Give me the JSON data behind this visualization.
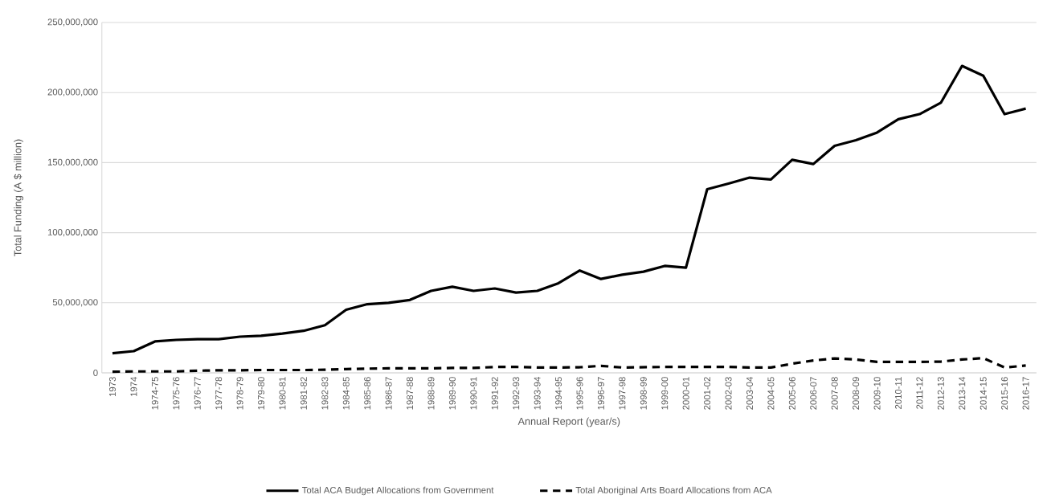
{
  "chart_data": {
    "type": "line",
    "xlabel": "Annual Report (year/s)",
    "ylabel": "Total Funding (A $ million)",
    "categories": [
      "1973",
      "1974",
      "1974-75",
      "1975-76",
      "1976-77",
      "1977-78",
      "1978-79",
      "1979-80",
      "1980-81",
      "1981-82",
      "1982-83",
      "1984-85",
      "1985-86",
      "1986-87",
      "1987-88",
      "1988-89",
      "1989-90",
      "1990-91",
      "1991-92",
      "1992-93",
      "1993-94",
      "1994-95",
      "1995-96",
      "1996-97",
      "1997-98",
      "1998-99",
      "1999-00",
      "2000-01",
      "2001-02",
      "2002-03",
      "2003-04",
      "2004-05",
      "2005-06",
      "2006-07",
      "2007-08",
      "2008-09",
      "2009-10",
      "2010-11",
      "2011-12",
      "2012-13",
      "2013-14",
      "2014-15",
      "2015-16",
      "2016-17"
    ],
    "series": [
      {
        "name": "Total ACA Budget Allocations from Government",
        "color": "#000000",
        "line_style": "solid",
        "values": [
          14000000,
          15500000,
          22400000,
          23500000,
          24000000,
          24000000,
          25800000,
          26400000,
          28000000,
          30000000,
          34000000,
          45000000,
          49000000,
          50000000,
          52000000,
          58500000,
          61400000,
          58500000,
          60200000,
          57300000,
          58500000,
          64000000,
          73000000,
          67000000,
          70000000,
          72200000,
          76300000,
          75000000,
          131000000,
          135000000,
          139300000,
          138000000,
          152000000,
          149000000,
          162000000,
          166000000,
          171500000,
          181000000,
          184600000,
          192700000,
          219000000,
          212000000,
          184600000,
          188600000
        ]
      },
      {
        "name": "Total Aboriginal Arts Board Allocations from ACA",
        "color": "#000000",
        "line_style": "dashed",
        "values": [
          800000,
          1000000,
          1000000,
          1000000,
          1500000,
          1800000,
          1800000,
          2000000,
          2000000,
          2000000,
          2200000,
          2700000,
          3000000,
          3200000,
          3200000,
          3200000,
          3500000,
          3500000,
          4200000,
          4200000,
          3800000,
          3800000,
          4000000,
          5000000,
          3800000,
          4000000,
          4200000,
          4200000,
          4200000,
          4200000,
          3800000,
          3800000,
          6500000,
          8800000,
          10300000,
          9500000,
          7800000,
          7800000,
          7800000,
          8000000,
          9500000,
          10500000,
          3800000,
          5200000
        ]
      }
    ],
    "ylim": [
      0,
      250000000
    ],
    "yticks": [
      {
        "value": 0,
        "label": "0"
      },
      {
        "value": 50000000,
        "label": "50,000,000"
      },
      {
        "value": 100000000,
        "label": "100,000,000"
      },
      {
        "value": 150000000,
        "label": "150,000,000"
      },
      {
        "value": 200000000,
        "label": "200,000,000"
      },
      {
        "value": 250000000,
        "label": "250,000,000"
      }
    ],
    "grid": "y",
    "legend": "bottom",
    "marker": "none"
  }
}
